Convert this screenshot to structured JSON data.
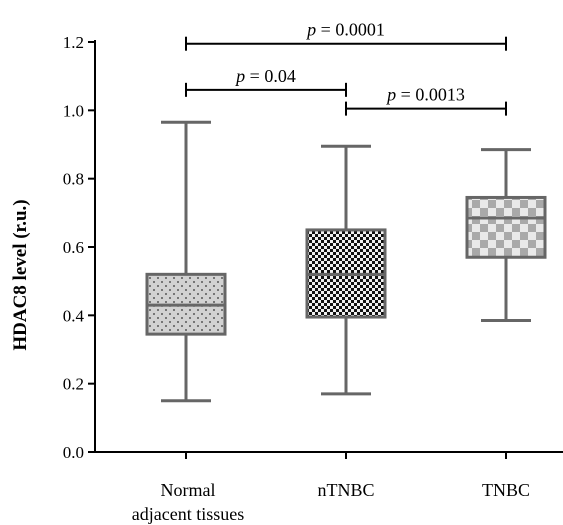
{
  "chart_data": {
    "type": "boxplot",
    "ylabel": "HDAC8 level (r.u.)",
    "xlabel": "",
    "ylim": [
      0.0,
      1.2
    ],
    "yticks": [
      0.0,
      0.2,
      0.4,
      0.6,
      0.8,
      1.0,
      1.2
    ],
    "ytick_labels": [
      "0.0",
      "0.2",
      "0.4",
      "0.6",
      "0.8",
      "1.0",
      "1.2"
    ],
    "grid": false,
    "categories": [
      [
        "Normal",
        "adjacent tissues"
      ],
      [
        "nTNBC"
      ],
      [
        "TNBC"
      ]
    ],
    "boxes": [
      {
        "min": 0.15,
        "q1": 0.345,
        "median": 0.43,
        "q3": 0.52,
        "max": 0.965,
        "pattern": "dots",
        "fill": "#cfcfcf"
      },
      {
        "min": 0.17,
        "q1": 0.395,
        "median": 0.52,
        "q3": 0.65,
        "max": 0.895,
        "pattern": "fine-checker",
        "fill": "#2a2a2a"
      },
      {
        "min": 0.385,
        "q1": 0.57,
        "median": 0.685,
        "q3": 0.745,
        "max": 0.885,
        "pattern": "coarse-checker",
        "fill": "#bdbdbd"
      }
    ],
    "annotations": [
      {
        "from": 0,
        "to": 2,
        "y": 1.195,
        "label": "p = 0.0001"
      },
      {
        "from": 0,
        "to": 1,
        "y": 1.06,
        "label": "p = 0.04"
      },
      {
        "from": 1,
        "to": 2,
        "y": 1.005,
        "label": "p = 0.0013"
      }
    ],
    "colors": {
      "axis": "#000000",
      "box_stroke": "#666666"
    }
  }
}
